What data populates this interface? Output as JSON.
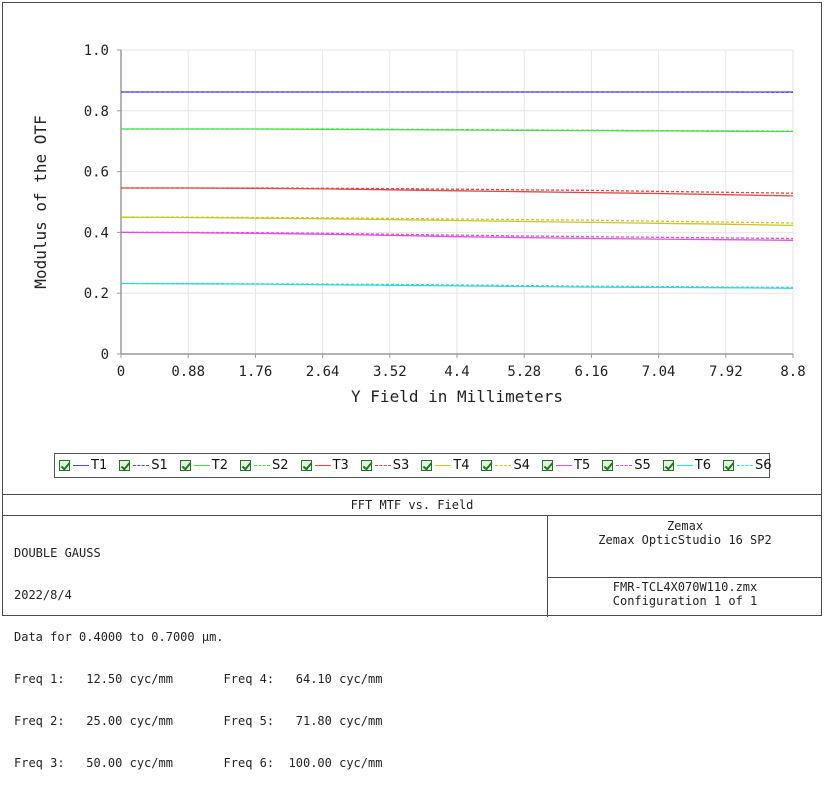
{
  "chart_data": {
    "type": "line",
    "title": "FFT MTF vs. Field",
    "xlabel": "Y Field in Millimeters",
    "ylabel": "Modulus of the OTF",
    "xlim": [
      0,
      8.8
    ],
    "ylim": [
      0,
      1.0
    ],
    "x_ticks": [
      "0",
      "0.88",
      "1.76",
      "2.64",
      "3.52",
      "4.4",
      "5.28",
      "6.16",
      "7.04",
      "7.92",
      "8.8"
    ],
    "y_ticks": [
      "0",
      "0.2",
      "0.4",
      "0.6",
      "0.8",
      "1.0"
    ],
    "grid": true,
    "legend_position": "bottom",
    "x": [
      0,
      0.88,
      1.76,
      2.64,
      3.52,
      4.4,
      5.28,
      6.16,
      7.04,
      7.92,
      8.8
    ],
    "series": [
      {
        "name": "T1",
        "color": "#4a4ae6",
        "dash": "solid",
        "values": [
          0.862,
          0.862,
          0.862,
          0.862,
          0.862,
          0.862,
          0.862,
          0.862,
          0.862,
          0.862,
          0.862
        ]
      },
      {
        "name": "S1",
        "color": "#4a4ae6",
        "dash": "dashed",
        "values": [
          0.862,
          0.862,
          0.862,
          0.862,
          0.862,
          0.862,
          0.862,
          0.862,
          0.862,
          0.862,
          0.861
        ]
      },
      {
        "name": "T2",
        "color": "#4fd84f",
        "dash": "solid",
        "values": [
          0.74,
          0.74,
          0.74,
          0.739,
          0.738,
          0.737,
          0.736,
          0.735,
          0.734,
          0.733,
          0.732
        ]
      },
      {
        "name": "S2",
        "color": "#4fd84f",
        "dash": "dashed",
        "values": [
          0.74,
          0.74,
          0.74,
          0.74,
          0.739,
          0.738,
          0.737,
          0.736,
          0.735,
          0.734,
          0.733
        ]
      },
      {
        "name": "T3",
        "color": "#e04848",
        "dash": "solid",
        "values": [
          0.546,
          0.546,
          0.545,
          0.543,
          0.54,
          0.537,
          0.534,
          0.531,
          0.528,
          0.524,
          0.52
        ]
      },
      {
        "name": "S3",
        "color": "#e04848",
        "dash": "dashed",
        "values": [
          0.546,
          0.546,
          0.546,
          0.545,
          0.544,
          0.542,
          0.54,
          0.538,
          0.535,
          0.532,
          0.529
        ]
      },
      {
        "name": "T4",
        "color": "#c6c628",
        "dash": "solid",
        "values": [
          0.45,
          0.449,
          0.447,
          0.445,
          0.442,
          0.439,
          0.436,
          0.433,
          0.43,
          0.427,
          0.423
        ]
      },
      {
        "name": "S4",
        "color": "#c6c628",
        "dash": "dashed",
        "values": [
          0.45,
          0.45,
          0.449,
          0.448,
          0.446,
          0.444,
          0.442,
          0.44,
          0.437,
          0.434,
          0.431
        ]
      },
      {
        "name": "T5",
        "color": "#e050e0",
        "dash": "solid",
        "values": [
          0.4,
          0.399,
          0.397,
          0.394,
          0.39,
          0.386,
          0.383,
          0.38,
          0.378,
          0.376,
          0.374
        ]
      },
      {
        "name": "S5",
        "color": "#e050e0",
        "dash": "dashed",
        "values": [
          0.4,
          0.4,
          0.399,
          0.397,
          0.394,
          0.391,
          0.388,
          0.386,
          0.384,
          0.382,
          0.38
        ]
      },
      {
        "name": "T6",
        "color": "#38d8d8",
        "dash": "solid",
        "values": [
          0.232,
          0.231,
          0.23,
          0.228,
          0.226,
          0.224,
          0.222,
          0.22,
          0.219,
          0.218,
          0.216
        ]
      },
      {
        "name": "S6",
        "color": "#38d8d8",
        "dash": "dashed",
        "values": [
          0.232,
          0.232,
          0.231,
          0.23,
          0.229,
          0.227,
          0.225,
          0.223,
          0.222,
          0.22,
          0.219
        ]
      }
    ]
  },
  "legend_items": [
    "T1",
    "S1",
    "T2",
    "S2",
    "T3",
    "S3",
    "T4",
    "S4",
    "T5",
    "S5",
    "T6",
    "S6"
  ],
  "info": {
    "title": "FFT MTF vs. Field",
    "lens_name": "DOUBLE GAUSS",
    "date": "2022/8/4",
    "data_range": "Data for 0.4000 to 0.7000 µm.",
    "freq_rows": [
      "Freq 1:   12.50 cyc/mm       Freq 4:   64.10 cyc/mm",
      "Freq 2:   25.00 cyc/mm       Freq 5:   71.80 cyc/mm",
      "Freq 3:   50.00 cyc/mm       Freq 6:  100.00 cyc/mm"
    ],
    "vendor": "Zemax",
    "product": "Zemax OpticStudio 16 SP2",
    "file": "FMR-TCL4X070W110.zmx",
    "configuration": "Configuration 1 of 1"
  }
}
